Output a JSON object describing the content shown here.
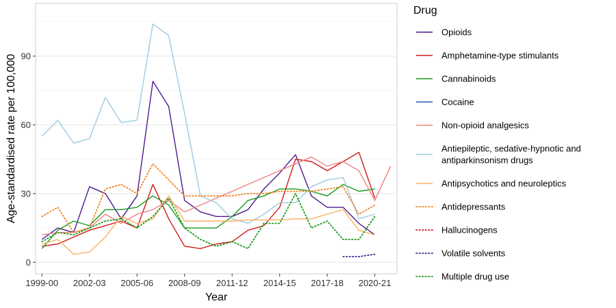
{
  "chart_data": {
    "type": "line",
    "xlabel": "Year",
    "ylabel": "Age-standardised rate per 100,000",
    "x_tick_labels": [
      "1999-00",
      "2002-03",
      "2005-06",
      "2008-09",
      "2011-12",
      "2014-15",
      "2017-18",
      "2020-21"
    ],
    "y_ticks": [
      0,
      30,
      60,
      90
    ],
    "ylim": [
      -5,
      113
    ],
    "xlim": [
      1998.6,
      2021.4
    ],
    "grid": true,
    "legend": {
      "title": "Drug",
      "placement": "right"
    },
    "series": [
      {
        "name": "Opioids",
        "color": "#4b1a8c",
        "dash": "solid",
        "points": [
          [
            1999,
            10
          ],
          [
            2000,
            15
          ],
          [
            2001,
            13
          ],
          [
            2002,
            33
          ],
          [
            2003,
            30
          ],
          [
            2004,
            19
          ],
          [
            2005,
            29
          ],
          [
            2006,
            79
          ],
          [
            2007,
            68
          ],
          [
            2008,
            27
          ],
          [
            2009,
            22
          ],
          [
            2010,
            20
          ],
          [
            2011,
            20
          ],
          [
            2012,
            23
          ],
          [
            2013,
            32
          ],
          [
            2014,
            39
          ],
          [
            2015,
            47
          ],
          [
            2016,
            29
          ],
          [
            2017,
            24
          ],
          [
            2018,
            24
          ],
          [
            2019,
            17
          ],
          [
            2020,
            12
          ]
        ]
      },
      {
        "name": "Amphetamine-type stimulants",
        "color": "#d11a1a",
        "dash": "solid",
        "points": [
          [
            1999,
            7
          ],
          [
            2000,
            8
          ],
          [
            2001,
            11
          ],
          [
            2002,
            14
          ],
          [
            2003,
            16
          ],
          [
            2004,
            18
          ],
          [
            2005,
            15
          ],
          [
            2006,
            34
          ],
          [
            2007,
            19
          ],
          [
            2008,
            7
          ],
          [
            2009,
            6
          ],
          [
            2010,
            8
          ],
          [
            2011,
            9
          ],
          [
            2012,
            14
          ],
          [
            2013,
            16
          ],
          [
            2014,
            24
          ],
          [
            2015,
            45
          ],
          [
            2016,
            44
          ],
          [
            2017,
            40
          ],
          [
            2018,
            44
          ],
          [
            2019,
            48
          ],
          [
            2020,
            28
          ]
        ]
      },
      {
        "name": "Cannabinoids",
        "color": "#1a9a1a",
        "dash": "solid",
        "points": [
          [
            1999,
            6
          ],
          [
            2000,
            14
          ],
          [
            2001,
            18
          ],
          [
            2002,
            16
          ],
          [
            2003,
            23
          ],
          [
            2004,
            23
          ],
          [
            2005,
            24
          ],
          [
            2006,
            29
          ],
          [
            2007,
            25
          ],
          [
            2008,
            15
          ],
          [
            2009,
            15
          ],
          [
            2010,
            15
          ],
          [
            2011,
            20
          ],
          [
            2012,
            27
          ],
          [
            2013,
            29
          ],
          [
            2014,
            32
          ],
          [
            2015,
            32
          ],
          [
            2016,
            31
          ],
          [
            2017,
            29
          ],
          [
            2018,
            34
          ],
          [
            2019,
            31
          ],
          [
            2020,
            32
          ]
        ]
      },
      {
        "name": "Cocaine",
        "color": "#1f5fa8",
        "dash": "solid",
        "points": []
      },
      {
        "name": "Non-opioid analgesics",
        "color": "#f08080",
        "dash": "solid",
        "points": [
          [
            1999,
            12
          ],
          [
            2000,
            13
          ],
          [
            2001,
            13
          ],
          [
            2002,
            15
          ],
          [
            2003,
            21
          ],
          [
            2004,
            17
          ],
          [
            2005,
            21
          ],
          [
            2006,
            23
          ],
          [
            2007,
            27
          ],
          [
            2008,
            22
          ],
          [
            2009,
            25
          ],
          [
            2010,
            28
          ],
          [
            2011,
            31
          ],
          [
            2012,
            34
          ],
          [
            2013,
            37
          ],
          [
            2014,
            40
          ],
          [
            2015,
            43
          ],
          [
            2016,
            46
          ],
          [
            2017,
            42
          ],
          [
            2018,
            44
          ],
          [
            2019,
            40
          ],
          [
            2020,
            27
          ],
          [
            2021,
            42
          ]
        ]
      },
      {
        "name": "Antiepileptic, sedative-hypnotic and antiparkinsonism drugs",
        "color": "#9ecae1",
        "dash": "solid",
        "points": [
          [
            1999,
            55
          ],
          [
            2000,
            62
          ],
          [
            2001,
            52
          ],
          [
            2002,
            54
          ],
          [
            2003,
            72
          ],
          [
            2004,
            61
          ],
          [
            2005,
            62
          ],
          [
            2006,
            104
          ],
          [
            2007,
            99
          ],
          [
            2008,
            65
          ],
          [
            2009,
            29
          ],
          [
            2010,
            26
          ],
          [
            2011,
            19
          ],
          [
            2012,
            17
          ],
          [
            2013,
            21
          ],
          [
            2014,
            26
          ],
          [
            2015,
            26
          ],
          [
            2016,
            33
          ],
          [
            2017,
            36
          ],
          [
            2018,
            37
          ],
          [
            2019,
            19
          ],
          [
            2020,
            21
          ]
        ]
      },
      {
        "name": "Antipsychotics and neuroleptics",
        "color": "#fdae61",
        "dash": "solid",
        "points": [
          [
            1999,
            8
          ],
          [
            2000,
            10
          ],
          [
            2001,
            3.5
          ],
          [
            2002,
            4.5
          ],
          [
            2003,
            11
          ],
          [
            2004,
            20
          ],
          [
            2005,
            17
          ],
          [
            2006,
            19
          ],
          [
            2007,
            29
          ],
          [
            2008,
            18
          ],
          [
            2009,
            18
          ],
          [
            2010,
            18
          ],
          [
            2011,
            18
          ],
          [
            2012,
            18.5
          ],
          [
            2013,
            18.5
          ],
          [
            2014,
            18.5
          ],
          [
            2015,
            19
          ],
          [
            2016,
            19
          ],
          [
            2017,
            21
          ],
          [
            2018,
            23
          ],
          [
            2019,
            14
          ],
          [
            2020,
            12
          ]
        ]
      },
      {
        "name": "Antidepressants",
        "color": "#f4811f",
        "dash": "dotted",
        "points": [
          [
            1999,
            20
          ],
          [
            2000,
            24
          ],
          [
            2001,
            13
          ],
          [
            2002,
            15
          ],
          [
            2003,
            32
          ],
          [
            2004,
            34
          ],
          [
            2005,
            30
          ],
          [
            2006,
            43
          ],
          [
            2007,
            36
          ],
          [
            2008,
            29
          ],
          [
            2009,
            29
          ],
          [
            2010,
            29
          ],
          [
            2011,
            29
          ],
          [
            2012,
            30
          ],
          [
            2013,
            30
          ],
          [
            2014,
            31
          ],
          [
            2015,
            31
          ],
          [
            2016,
            31
          ],
          [
            2017,
            32
          ],
          [
            2018,
            33
          ],
          [
            2019,
            21
          ],
          [
            2020,
            25
          ]
        ]
      },
      {
        "name": "Hallucinogens",
        "color": "#d11a1a",
        "dash": "dotted",
        "points": []
      },
      {
        "name": "Volatile solvents",
        "color": "#3a2a8c",
        "dash": "dotted",
        "points": [
          [
            2018,
            2.5
          ],
          [
            2019,
            2.5
          ],
          [
            2020,
            3.5
          ]
        ]
      },
      {
        "name": "Multiple drug use",
        "color": "#1a9a1a",
        "dash": "dotted",
        "points": [
          [
            1999,
            9
          ],
          [
            2000,
            13
          ],
          [
            2001,
            12
          ],
          [
            2002,
            15
          ],
          [
            2003,
            18
          ],
          [
            2004,
            19
          ],
          [
            2005,
            15
          ],
          [
            2006,
            20
          ],
          [
            2007,
            28
          ],
          [
            2008,
            15
          ],
          [
            2009,
            10
          ],
          [
            2010,
            7
          ],
          [
            2011,
            9
          ],
          [
            2012,
            6
          ],
          [
            2013,
            17
          ],
          [
            2014,
            17
          ],
          [
            2015,
            30
          ],
          [
            2016,
            15
          ],
          [
            2017,
            18
          ],
          [
            2018,
            10
          ],
          [
            2019,
            10
          ],
          [
            2020,
            20
          ]
        ]
      }
    ]
  }
}
